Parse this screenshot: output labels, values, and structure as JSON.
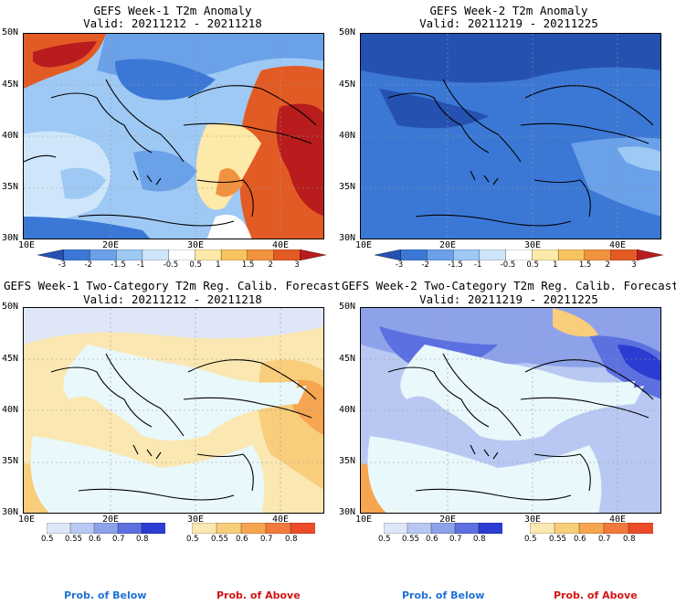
{
  "colors": {
    "sea": "#e9f8fb",
    "coast": "#000000",
    "below_prob": "#1e72d4",
    "above_prob": "#d21414",
    "anom_scale": [
      "#2551b0",
      "#3b78d6",
      "#6aa1e8",
      "#9ec9f5",
      "#cfe6fa",
      "#ffffff",
      "#fde9a8",
      "#f8c460",
      "#f19240",
      "#e35b24",
      "#b81c1c"
    ],
    "prob_below_scale": [
      "#dfe6f8",
      "#b9c8f2",
      "#8ea2ea",
      "#5c70e0",
      "#2b3cd2"
    ],
    "prob_above_scale": [
      "#fbe7b1",
      "#f8cd7b",
      "#f6a550",
      "#f17a3c",
      "#ec4b2a"
    ]
  },
  "panels": [
    {
      "title": "GEFS Week-1 T2m Anomaly",
      "valid": "Valid: 20211212 - 20211218",
      "lat_labels": [
        "50N",
        "45N",
        "40N",
        "35N",
        "30N"
      ],
      "lon_labels": [
        "10E",
        "20E",
        "30E",
        "40E"
      ],
      "colorbar_labels": [
        "-3",
        "-2",
        "-1.5",
        "-1",
        "-0.5",
        "0.5",
        "1",
        "1.5",
        "2",
        "3"
      ]
    },
    {
      "title": "GEFS Week-2 T2m Anomaly",
      "valid": "Valid: 20211219 - 20211225",
      "lat_labels": [
        "50N",
        "45N",
        "40N",
        "35N",
        "30N"
      ],
      "lon_labels": [
        "10E",
        "20E",
        "30E",
        "40E"
      ],
      "colorbar_labels": [
        "-3",
        "-2",
        "-1.5",
        "-1",
        "-0.5",
        "0.5",
        "1",
        "1.5",
        "2",
        "3"
      ]
    },
    {
      "title": "GEFS Week-1 Two-Category T2m Reg. Calib. Forecast",
      "valid": "Valid: 20211212 - 20211218",
      "lat_labels": [
        "50N",
        "45N",
        "40N",
        "35N",
        "30N"
      ],
      "lon_labels": [
        "10E",
        "20E",
        "30E",
        "40E"
      ],
      "below_labels": [
        "0.5",
        "0.55",
        "0.6",
        "0.7",
        "0.8"
      ],
      "above_labels": [
        "0.5",
        "0.55",
        "0.6",
        "0.7",
        "0.8"
      ],
      "below_caption": "Prob. of Below",
      "above_caption": "Prob. of Above"
    },
    {
      "title": "GEFS Week-2 Two-Category T2m Reg. Calib. Forecast",
      "valid": "Valid: 20211219 - 20211225",
      "lat_labels": [
        "50N",
        "45N",
        "40N",
        "35N",
        "30N"
      ],
      "lon_labels": [
        "10E",
        "20E",
        "30E",
        "40E"
      ],
      "below_labels": [
        "0.5",
        "0.55",
        "0.6",
        "0.7",
        "0.8"
      ],
      "above_labels": [
        "0.5",
        "0.55",
        "0.6",
        "0.7",
        "0.8"
      ],
      "below_caption": "Prob. of Below",
      "above_caption": "Prob. of Above"
    }
  ]
}
